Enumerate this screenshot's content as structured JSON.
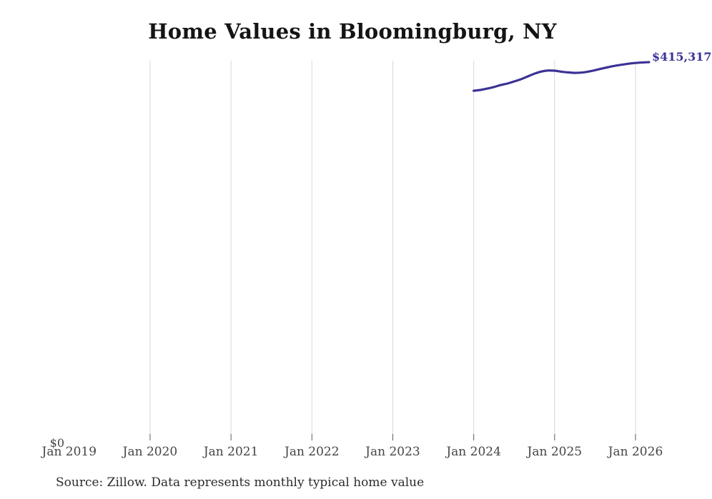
{
  "figure": {
    "title": "Home Values in Bloomingburg, NY",
    "y_zero_label": "$0",
    "last_value_label": "$415,317",
    "source_note": "Source: Zillow. Data represents monthly typical home value",
    "line_color": "#3b3295",
    "grid_color": "#d8d8d8",
    "tick_color": "#5a5a5a",
    "title_color": "#141414",
    "axis_label_color": "#454545"
  },
  "chart_data": {
    "type": "line",
    "title": "Home Values in Bloomingburg, NY",
    "xlabel": "",
    "ylabel": "",
    "x_tick_labels": [
      "Jan 2019",
      "Jan 2020",
      "Jan 2021",
      "Jan 2022",
      "Jan 2023",
      "Jan 2024",
      "Jan 2025",
      "Jan 2026"
    ],
    "y_tick_labels": [
      "$0"
    ],
    "ylim": [
      0,
      417000
    ],
    "grid": "vertical-only",
    "legend": "none",
    "series": [
      {
        "name": "Monthly typical home value",
        "x": [
          "2024-01",
          "2024-02",
          "2024-03",
          "2024-04",
          "2024-05",
          "2024-06",
          "2024-07",
          "2024-08",
          "2024-09",
          "2024-10",
          "2024-11",
          "2024-12",
          "2025-01",
          "2025-02",
          "2025-03",
          "2025-04",
          "2025-05",
          "2025-06",
          "2025-07",
          "2025-08",
          "2025-09",
          "2025-10",
          "2025-11",
          "2025-12",
          "2026-01",
          "2026-02",
          "2026-03"
        ],
        "values": [
          383600,
          384500,
          386000,
          387700,
          389900,
          391600,
          393900,
          396300,
          399400,
          402500,
          404800,
          406000,
          405800,
          404700,
          403900,
          403400,
          403700,
          404800,
          406400,
          408100,
          409800,
          411300,
          412500,
          413600,
          414400,
          414900,
          415317
        ]
      }
    ],
    "annotations": [
      {
        "text": "$415,317",
        "position": "end-of-line",
        "color": "#3b3295"
      }
    ],
    "source": "Source: Zillow. Data represents monthly typical home value"
  }
}
